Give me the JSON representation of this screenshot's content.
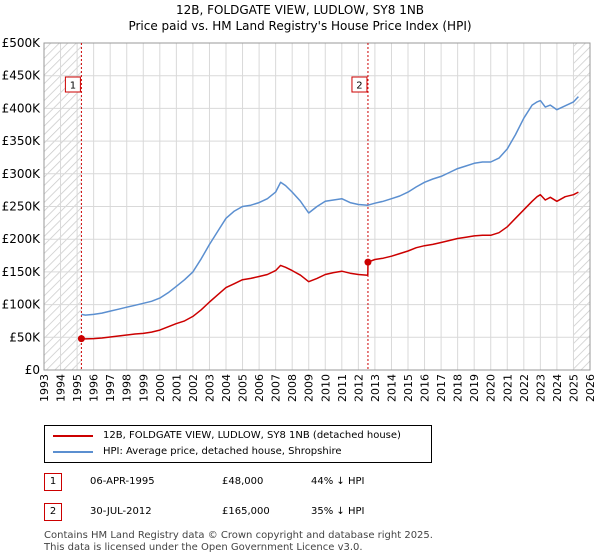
{
  "title": "12B, FOLDGATE VIEW, LUDLOW, SY8 1NB",
  "subtitle": "Price paid vs. HM Land Registry's House Price Index (HPI)",
  "colors": {
    "property": "#cc0000",
    "hpi": "#5b8fd0",
    "grid": "#d9d9d9",
    "hatch": "#c9c9c9",
    "marker": "#cc0000"
  },
  "chart_data": {
    "type": "line",
    "title": "12B, FOLDGATE VIEW, LUDLOW, SY8 1NB",
    "xlabel": "",
    "ylabel": "",
    "xlim": [
      1993,
      2026
    ],
    "ylim": [
      0,
      500000
    ],
    "x_ticks": [
      1993,
      1994,
      1995,
      1996,
      1997,
      1998,
      1999,
      2000,
      2001,
      2002,
      2003,
      2004,
      2005,
      2006,
      2007,
      2008,
      2009,
      2010,
      2011,
      2012,
      2013,
      2014,
      2015,
      2016,
      2017,
      2018,
      2019,
      2020,
      2021,
      2022,
      2023,
      2024,
      2025,
      2026
    ],
    "y_ticks": [
      0,
      50000,
      100000,
      150000,
      200000,
      250000,
      300000,
      350000,
      400000,
      450000,
      500000
    ],
    "y_tick_labels": [
      "£0",
      "£50K",
      "£100K",
      "£150K",
      "£200K",
      "£250K",
      "£300K",
      "£350K",
      "£400K",
      "£450K",
      "£500K"
    ],
    "hatched_ranges": [
      [
        1993,
        1995.26
      ],
      [
        2025.0,
        2026
      ]
    ],
    "series": [
      {
        "name": "12B, FOLDGATE VIEW, LUDLOW, SY8 1NB (detached house)",
        "color": "#cc0000",
        "x": [
          1995.26,
          1995.5,
          1996,
          1996.5,
          1997,
          1997.5,
          1998,
          1998.5,
          1999,
          1999.5,
          2000,
          2000.5,
          2001,
          2001.5,
          2002,
          2002.5,
          2003,
          2003.5,
          2004,
          2004.5,
          2005,
          2005.5,
          2006,
          2006.5,
          2007,
          2007.3,
          2007.6,
          2008,
          2008.5,
          2009,
          2009.5,
          2010,
          2010.5,
          2011,
          2011.5,
          2012,
          2012.57,
          2012.58,
          2013,
          2013.5,
          2014,
          2014.5,
          2015,
          2015.5,
          2016,
          2016.5,
          2017,
          2017.5,
          2018,
          2018.5,
          2019,
          2019.5,
          2020,
          2020.5,
          2021,
          2021.5,
          2022,
          2022.5,
          2022.8,
          2023,
          2023.3,
          2023.6,
          2024,
          2024.5,
          2025,
          2025.3
        ],
        "y": [
          48000,
          47500,
          48000,
          49000,
          50500,
          52000,
          53500,
          55000,
          56000,
          58000,
          61000,
          66000,
          71000,
          75000,
          82000,
          92000,
          104000,
          115000,
          126000,
          132000,
          138000,
          140000,
          143000,
          146000,
          152000,
          160000,
          157000,
          152000,
          145000,
          135000,
          140000,
          146000,
          149000,
          151000,
          148000,
          146000,
          145000,
          165000,
          169000,
          171000,
          174000,
          178000,
          182000,
          187000,
          190000,
          192000,
          195000,
          198000,
          201000,
          203000,
          205000,
          206000,
          206000,
          210000,
          219000,
          232000,
          245000,
          258000,
          265000,
          268000,
          260000,
          264000,
          258000,
          265000,
          268000,
          272000
        ]
      },
      {
        "name": "HPI: Average price, detached house, Shropshire",
        "color": "#5b8fd0",
        "x": [
          1995.26,
          1995.5,
          1996,
          1996.5,
          1997,
          1997.5,
          1998,
          1998.5,
          1999,
          1999.5,
          2000,
          2000.5,
          2001,
          2001.5,
          2002,
          2002.5,
          2003,
          2003.5,
          2004,
          2004.5,
          2005,
          2005.5,
          2006,
          2006.5,
          2007,
          2007.3,
          2007.6,
          2008,
          2008.5,
          2009,
          2009.5,
          2010,
          2010.5,
          2011,
          2011.5,
          2012,
          2012.57,
          2013,
          2013.5,
          2014,
          2014.5,
          2015,
          2015.5,
          2016,
          2016.5,
          2017,
          2017.5,
          2018,
          2018.5,
          2019,
          2019.5,
          2020,
          2020.5,
          2021,
          2021.5,
          2022,
          2022.5,
          2022.8,
          2023,
          2023.3,
          2023.6,
          2024,
          2024.5,
          2025,
          2025.3
        ],
        "y": [
          85000,
          84000,
          85000,
          87000,
          90000,
          93000,
          96000,
          99000,
          102000,
          105000,
          110000,
          118000,
          128000,
          138000,
          150000,
          170000,
          192000,
          212000,
          232000,
          243000,
          250000,
          252000,
          256000,
          262000,
          272000,
          287000,
          282000,
          272000,
          258000,
          240000,
          250000,
          258000,
          260000,
          262000,
          256000,
          253000,
          252000,
          255000,
          258000,
          262000,
          266000,
          272000,
          280000,
          287000,
          292000,
          296000,
          302000,
          308000,
          312000,
          316000,
          318000,
          318000,
          324000,
          338000,
          360000,
          385000,
          405000,
          410000,
          412000,
          402000,
          405000,
          398000,
          404000,
          410000,
          418000
        ]
      }
    ],
    "sales": [
      {
        "label": "1",
        "x": 1995.26,
        "y": 48000
      },
      {
        "label": "2",
        "x": 2012.58,
        "y": 165000
      }
    ]
  },
  "legend": {
    "property_label": "12B, FOLDGATE VIEW, LUDLOW, SY8 1NB (detached house)",
    "hpi_label": "HPI: Average price, detached house, Shropshire"
  },
  "sales_table": [
    {
      "num": "1",
      "date": "06-APR-1995",
      "price": "£48,000",
      "hpi": "44% ↓ HPI"
    },
    {
      "num": "2",
      "date": "30-JUL-2012",
      "price": "£165,000",
      "hpi": "35% ↓ HPI"
    }
  ],
  "footer": {
    "line1": "Contains HM Land Registry data © Crown copyright and database right 2025.",
    "line2": "This data is licensed under the Open Government Licence v3.0."
  }
}
